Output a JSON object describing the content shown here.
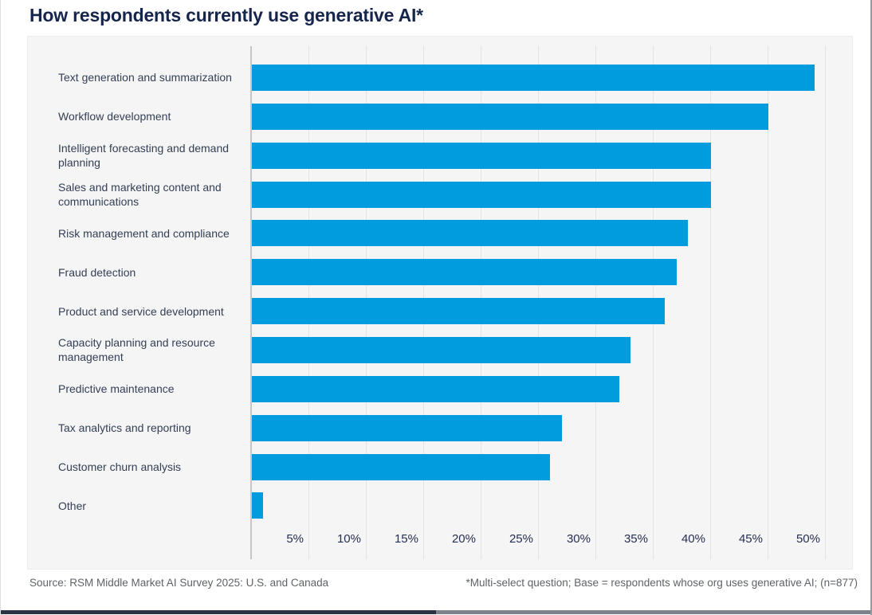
{
  "page": {
    "title": "How respondents currently use generative AI*"
  },
  "chart_data": {
    "type": "bar",
    "orientation": "horizontal",
    "title": "How respondents currently use generative AI*",
    "categories": [
      "Text generation and summarization",
      "Workflow development",
      "Intelligent forecasting and demand planning",
      "Sales and marketing content and communications",
      "Risk management and compliance",
      "Fraud detection",
      "Product and service development",
      "Capacity planning and resource management",
      "Predictive maintenance",
      "Tax analytics and reporting",
      "Customer churn analysis",
      "Other"
    ],
    "values": [
      49,
      45,
      40,
      40,
      38,
      37,
      36,
      33,
      32,
      27,
      26,
      1
    ],
    "unit": "%",
    "xlim": [
      0,
      50
    ],
    "xticks": [
      "5%",
      "10%",
      "15%",
      "20%",
      "25%",
      "30%",
      "35%",
      "40%",
      "45%",
      "50%"
    ],
    "grid": true,
    "legend": false,
    "bar_color": "#009cde",
    "plot_bg": "#f5f5f6",
    "title_color": "#16254c"
  },
  "footer": {
    "source": "Source: RSM Middle Market AI Survey 2025: U.S. and Canada",
    "note": "*Multi-select question; Base = respondents whose org uses generative AI; (n=877)"
  }
}
